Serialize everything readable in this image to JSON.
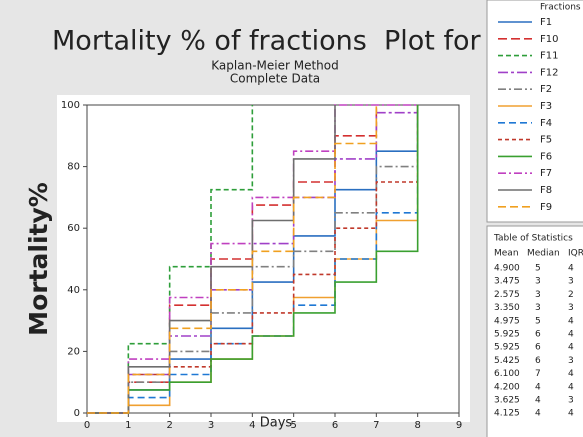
{
  "chart_data": {
    "type": "step",
    "title": "Mortality % of fractions  Plot for Days",
    "subtitle": [
      "Kaplan-Meier Method",
      "Complete Data"
    ],
    "x_label": "Days",
    "y_label": "Mortality%",
    "x": [
      0,
      1,
      2,
      3,
      4,
      5,
      6,
      7,
      8
    ],
    "xlim": [
      0,
      9
    ],
    "xticks": [
      0,
      1,
      2,
      3,
      4,
      5,
      6,
      7,
      8,
      9
    ],
    "ylim": [
      0,
      100
    ],
    "yticks": [
      0,
      20,
      40,
      60,
      80,
      100
    ],
    "legend_title": "Fractions",
    "series": [
      {
        "name": "F1",
        "color": "#2a6fc0",
        "dash": "",
        "values": [
          0,
          7.5,
          17.5,
          27.5,
          42.5,
          57.5,
          72.5,
          85,
          100
        ]
      },
      {
        "name": "F10",
        "color": "#d43030",
        "dash": "9 4",
        "values": [
          0,
          10,
          35,
          50,
          67.5,
          75,
          90,
          100,
          null
        ]
      },
      {
        "name": "F11",
        "color": "#2e9e3a",
        "dash": "5 3",
        "values": [
          0,
          22.5,
          47.5,
          72.5,
          100,
          null,
          null,
          null,
          null
        ]
      },
      {
        "name": "F12",
        "color": "#a040c8",
        "dash": "10 3 3 3",
        "values": [
          0,
          12.5,
          25,
          40,
          55,
          70,
          82.5,
          97.5,
          100
        ]
      },
      {
        "name": "F2",
        "color": "#808080",
        "dash": "8 3 2 3",
        "values": [
          0,
          10,
          20,
          32.5,
          47.5,
          52.5,
          65,
          80,
          100
        ]
      },
      {
        "name": "F3",
        "color": "#f0a030",
        "dash": "",
        "values": [
          0,
          2.5,
          10,
          17.5,
          25,
          37.5,
          50,
          62.5,
          100
        ]
      },
      {
        "name": "F4",
        "color": "#1f78d4",
        "dash": "7 4",
        "values": [
          0,
          5,
          12.5,
          22.5,
          25,
          35,
          50,
          65,
          100
        ]
      },
      {
        "name": "F5",
        "color": "#c0392b",
        "dash": "4 3",
        "values": [
          0,
          12.5,
          15,
          22.5,
          32.5,
          45,
          60,
          75,
          100
        ]
      },
      {
        "name": "F6",
        "color": "#3aa030",
        "dash": "",
        "values": [
          0,
          7.5,
          10,
          17.5,
          25,
          32.5,
          42.5,
          52.5,
          100
        ]
      },
      {
        "name": "F7",
        "color": "#c040c0",
        "dash": "8 3 2 3",
        "values": [
          0,
          17.5,
          37.5,
          55,
          70,
          85,
          100,
          100,
          100
        ]
      },
      {
        "name": "F8",
        "color": "#6e6e6e",
        "dash": "",
        "values": [
          0,
          15,
          30,
          47.5,
          62.5,
          82.5,
          100,
          null,
          null
        ]
      },
      {
        "name": "F9",
        "color": "#f0a020",
        "dash": "8 4",
        "values": [
          0,
          12.5,
          27.5,
          40,
          52.5,
          70,
          87.5,
          100,
          null
        ]
      }
    ],
    "statistics": {
      "title": "Table of Statistics",
      "columns": [
        "Mean",
        "Median",
        "IQR"
      ],
      "rows": [
        [
          "4.900",
          "5",
          "4"
        ],
        [
          "3.475",
          "3",
          "3"
        ],
        [
          "2.575",
          "3",
          "2"
        ],
        [
          "3.350",
          "3",
          "3"
        ],
        [
          "4.975",
          "5",
          "4"
        ],
        [
          "5.925",
          "6",
          "4"
        ],
        [
          "5.925",
          "6",
          "4"
        ],
        [
          "5.425",
          "6",
          "3"
        ],
        [
          "6.100",
          "7",
          "4"
        ],
        [
          "4.200",
          "4",
          "4"
        ],
        [
          "3.625",
          "4",
          "3"
        ],
        [
          "4.125",
          "4",
          "4"
        ]
      ]
    }
  }
}
